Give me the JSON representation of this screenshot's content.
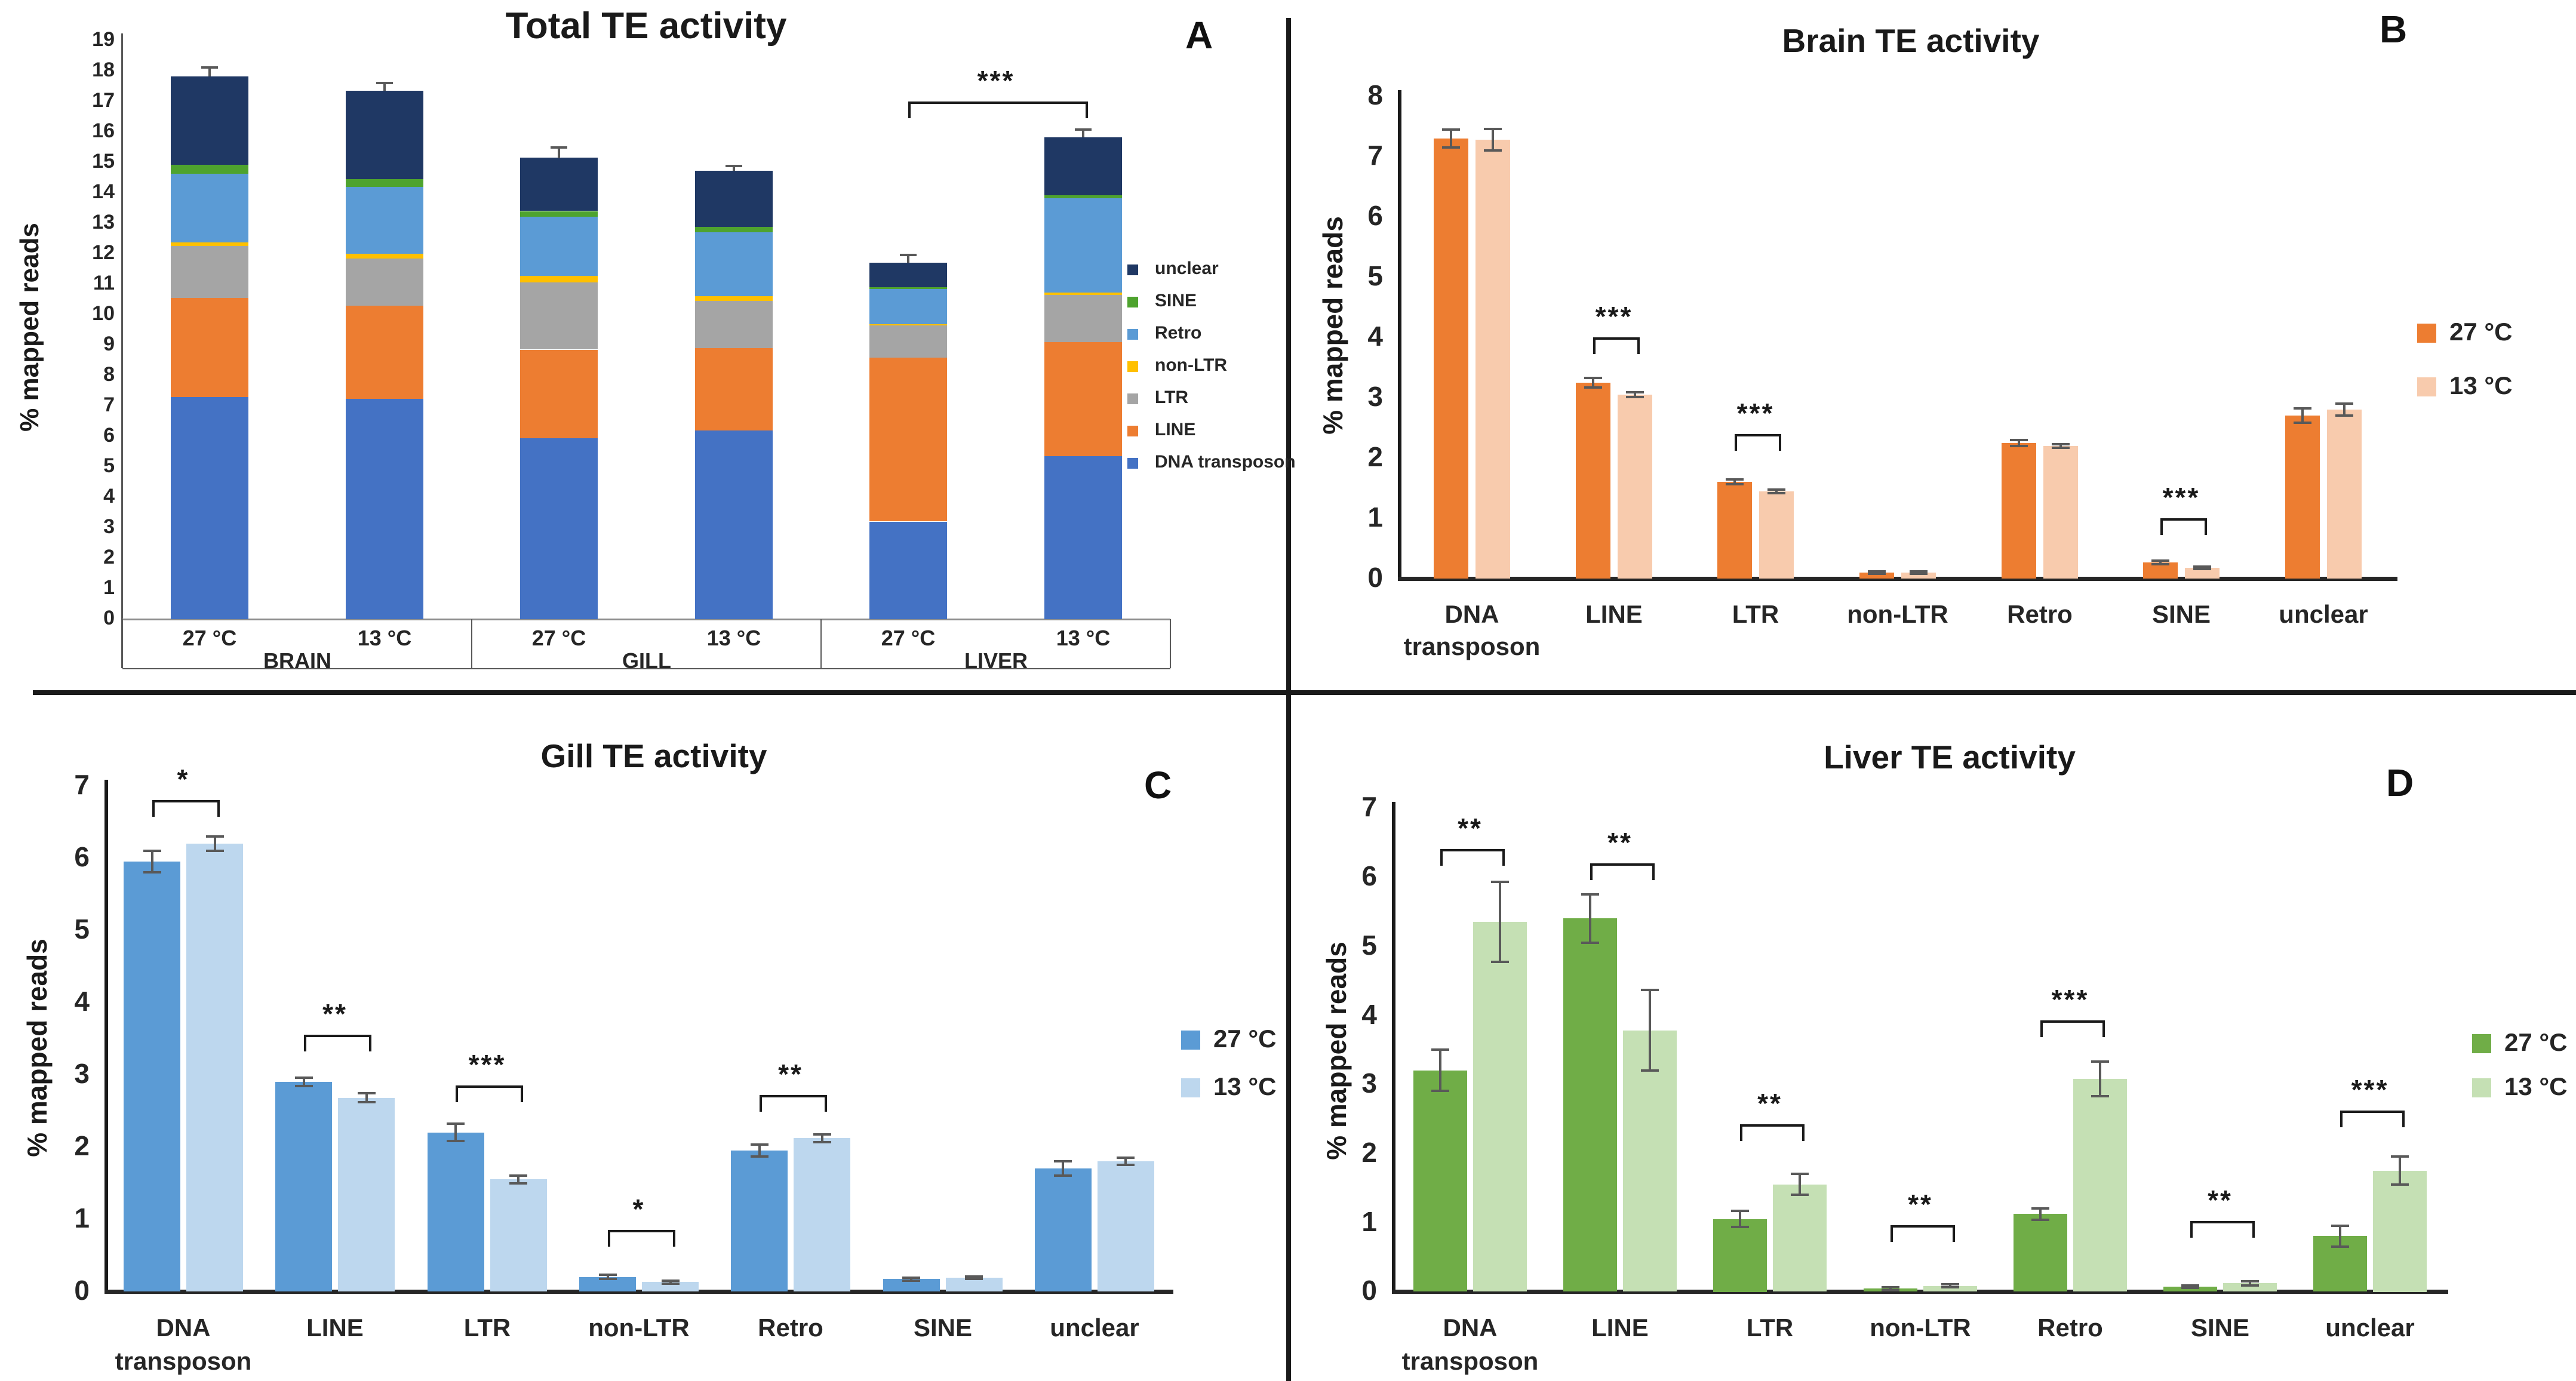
{
  "figure": {
    "background": "#FFFFFF",
    "divider_color": "#1A1A1A",
    "error_bar_color": "#595959",
    "bracket_color": "#1A1A1A"
  },
  "chart_data": [
    {
      "id": "A",
      "type": "stacked-bar",
      "title": "Total TE activity",
      "panel_label": "A",
      "ylabel": "% mapped reads",
      "ylim": [
        0,
        19
      ],
      "ytick_step": 1,
      "grid": false,
      "legend_position": "right",
      "groups": [
        "BRAIN",
        "GILL",
        "LIVER"
      ],
      "bar_labels": [
        "27 °C",
        "13 °C",
        "27 °C",
        "13 °C",
        "27 °C",
        "13 °C"
      ],
      "series": [
        {
          "name": "DNA transposon",
          "color": "#4472C4",
          "values": [
            7.3,
            7.25,
            5.95,
            6.2,
            3.2,
            5.35
          ]
        },
        {
          "name": "LINE",
          "color": "#ED7D31",
          "values": [
            3.25,
            3.05,
            2.9,
            2.7,
            5.4,
            3.75
          ]
        },
        {
          "name": "LTR",
          "color": "#A5A5A5",
          "values": [
            1.7,
            1.55,
            2.2,
            1.55,
            1.05,
            1.55
          ]
        },
        {
          "name": "non-LTR",
          "color": "#FFC000",
          "values": [
            0.12,
            0.15,
            0.22,
            0.15,
            0.05,
            0.08
          ]
        },
        {
          "name": "Retro",
          "color": "#5B9BD5",
          "values": [
            2.25,
            2.2,
            1.95,
            2.1,
            1.15,
            3.1
          ]
        },
        {
          "name": "SINE",
          "color": "#4EA32E",
          "values": [
            0.3,
            0.25,
            0.18,
            0.18,
            0.06,
            0.1
          ]
        },
        {
          "name": "unclear",
          "color": "#1F3864",
          "values": [
            2.9,
            2.9,
            1.75,
            1.85,
            0.8,
            1.9
          ]
        }
      ],
      "total_errors": [
        0.3,
        0.25,
        0.35,
        0.15,
        0.25,
        0.25
      ],
      "legend_order": [
        "unclear",
        "SINE",
        "Retro",
        "non-LTR",
        "LTR",
        "LINE",
        "DNA transposon"
      ],
      "significance": [
        {
          "from_bar": 4,
          "to_bar": 5,
          "label": "***",
          "y": 17.0
        }
      ]
    },
    {
      "id": "B",
      "type": "grouped-bar",
      "title": "Brain TE activity",
      "panel_label": "B",
      "ylabel": "% mapped reads",
      "ylim": [
        0,
        8
      ],
      "ytick_step": 1,
      "grid": false,
      "legend_position": "right",
      "categories": [
        "DNA\ntransposon",
        "LINE",
        "LTR",
        "non-LTR",
        "Retro",
        "SINE",
        "unclear"
      ],
      "series": [
        {
          "name": "27 °C",
          "color": "#ED7D31",
          "values": [
            7.3,
            3.25,
            1.6,
            0.1,
            2.25,
            0.27,
            2.7
          ],
          "errors": [
            0.15,
            0.08,
            0.04,
            0.02,
            0.05,
            0.03,
            0.12
          ]
        },
        {
          "name": "13 °C",
          "color": "#F8CBAD",
          "values": [
            7.28,
            3.05,
            1.45,
            0.1,
            2.2,
            0.18,
            2.8
          ],
          "errors": [
            0.18,
            0.04,
            0.03,
            0.02,
            0.03,
            0.02,
            0.1
          ]
        }
      ],
      "significance": [
        {
          "category": 1,
          "label": "***",
          "y": 4.0
        },
        {
          "category": 2,
          "label": "***",
          "y": 2.4
        },
        {
          "category": 5,
          "label": "***",
          "y": 1.0
        }
      ]
    },
    {
      "id": "C",
      "type": "grouped-bar",
      "title": "Gill TE activity",
      "panel_label": "C",
      "ylabel": "% mapped reads",
      "ylim": [
        0,
        7
      ],
      "ytick_step": 1,
      "grid": false,
      "legend_position": "right",
      "categories": [
        "DNA\ntransposon",
        "LINE",
        "LTR",
        "non-LTR",
        "Retro",
        "SINE",
        "unclear"
      ],
      "series": [
        {
          "name": "27 °C",
          "color": "#5B9BD5",
          "values": [
            5.95,
            2.9,
            2.2,
            0.2,
            1.95,
            0.17,
            1.7
          ],
          "errors": [
            0.15,
            0.06,
            0.12,
            0.03,
            0.08,
            0.02,
            0.1
          ]
        },
        {
          "name": "13 °C",
          "color": "#BDD7EE",
          "values": [
            6.2,
            2.68,
            1.55,
            0.13,
            2.12,
            0.19,
            1.8
          ],
          "errors": [
            0.1,
            0.06,
            0.05,
            0.02,
            0.05,
            0.02,
            0.05
          ]
        }
      ],
      "significance": [
        {
          "category": 0,
          "label": "*",
          "y": 6.8
        },
        {
          "category": 1,
          "label": "**",
          "y": 3.55
        },
        {
          "category": 2,
          "label": "***",
          "y": 2.85
        },
        {
          "category": 3,
          "label": "*",
          "y": 0.85
        },
        {
          "category": 4,
          "label": "**",
          "y": 2.72
        }
      ]
    },
    {
      "id": "D",
      "type": "grouped-bar",
      "title": "Liver TE activity",
      "panel_label": "D",
      "ylabel": "% mapped reads",
      "ylim": [
        0,
        7
      ],
      "ytick_step": 1,
      "grid": false,
      "legend_position": "right",
      "categories": [
        "DNA\ntransposon",
        "LINE",
        "LTR",
        "non-LTR",
        "Retro",
        "SINE",
        "unclear"
      ],
      "series": [
        {
          "name": "27 °C",
          "color": "#70AD47",
          "values": [
            3.2,
            5.4,
            1.05,
            0.04,
            1.12,
            0.07,
            0.8
          ],
          "errors": [
            0.3,
            0.35,
            0.12,
            0.02,
            0.08,
            0.02,
            0.15
          ]
        },
        {
          "name": "13 °C",
          "color": "#C5E0B4",
          "values": [
            5.35,
            3.78,
            1.55,
            0.08,
            3.08,
            0.12,
            1.75
          ],
          "errors": [
            0.58,
            0.58,
            0.15,
            0.02,
            0.25,
            0.03,
            0.2
          ]
        }
      ],
      "significance": [
        {
          "category": 0,
          "label": "**",
          "y": 6.4
        },
        {
          "category": 1,
          "label": "**",
          "y": 6.2
        },
        {
          "category": 2,
          "label": "**",
          "y": 2.42
        },
        {
          "category": 3,
          "label": "**",
          "y": 0.96
        },
        {
          "category": 4,
          "label": "***",
          "y": 3.92
        },
        {
          "category": 5,
          "label": "**",
          "y": 1.02
        },
        {
          "category": 6,
          "label": "***",
          "y": 2.62
        }
      ]
    }
  ]
}
